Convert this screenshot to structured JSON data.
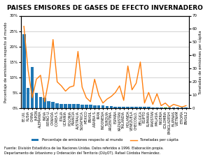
{
  "chart_data": {
    "type": "bar",
    "title": "PAISES EMISORES DE GASES DE EFECTO INVERNADERO",
    "ylabel": "Porcentaje de emisiones respecto al mundo",
    "y2label": "Toneladas de emisiones per cápita",
    "annotation": "Fuente: División Estadística de las Naciones Unidas. Datos referidos a 1996. Elaboración propia.\nDepartamento de Urbanismo y Ordenación del Territorio (DUyOT). Rafael Córdoba Hernández.",
    "categories": [
      "EE.UU.",
      "RUSIA",
      "CHINA",
      "JAPÓN",
      "ALEMANIA",
      "INDIA",
      "REINO U.",
      "CANADÁ",
      "COREA S.",
      "ITALIA",
      "UCRANIA",
      "POLONIA",
      "FRANCIA",
      "AUSTRALIA",
      "SUDÁFRICA",
      "MÉXICO",
      "BRASIL",
      "ARABIA S.",
      "IRÁN",
      "INDONESIA",
      "TURQUÍA",
      "ARGENTINA",
      "ESPAÑA",
      "KAZAJISTÁN",
      "TAILANDIA",
      "HOLANDA",
      "VENEZUELA",
      "CHECOSLO.",
      "BÉLGICA",
      "EGIPTO",
      "RUMANIA",
      "PAKISTAN",
      "MALASIA",
      "NIGERIA",
      "COLOMBIA",
      "BANGLADESH",
      "FILIPINAS",
      "VIETNAM",
      "ETIOPÍA",
      "BRASIL2"
    ],
    "series": [
      {
        "name": "Porcentaje de emisiones respecto al mundo",
        "type": "bar",
        "axis": "y",
        "colors": [
          "#1f77b4",
          "#1f77b4",
          "#1f77b4",
          "#1f77b4",
          "#1f77b4",
          "#1f77b4",
          "#1f77b4",
          "#1f77b4",
          "#1f77b4",
          "#1f77b4",
          "#1f77b4",
          "#1f77b4",
          "#1f77b4",
          "#1f77b4",
          "#1f77b4",
          "#1f77b4",
          "#1f77b4",
          "#1f77b4",
          "#1f77b4",
          "#1f77b4",
          "#1f77b4",
          "#1f77b4",
          "#1f77b4",
          "#1f77b4",
          "#1f77b4",
          "#1f77b4",
          "#1f77b4",
          "#1f77b4",
          "#1f77b4",
          "#1f77b4",
          "#1f77b4",
          "#1f77b4",
          "#1f77b4",
          "#1f77b4",
          "#2ca02c",
          "#1f77b4",
          "#1f77b4",
          "#1f77b4",
          "#1f77b4",
          "#1f77b4"
        ],
        "values": [
          24.0,
          6.5,
          13.5,
          5.0,
          3.6,
          3.5,
          2.4,
          2.1,
          1.7,
          1.5,
          1.4,
          1.3,
          1.5,
          1.3,
          1.1,
          1.2,
          1.1,
          0.9,
          0.9,
          0.9,
          0.7,
          0.7,
          0.6,
          0.5,
          0.5,
          0.5,
          0.5,
          0.4,
          0.4,
          0.4,
          0.4,
          0.3,
          0.3,
          0.3,
          0.3,
          0.3,
          0.2,
          0.2,
          0.2,
          0.2
        ]
      },
      {
        "name": "Toneladas per cápita",
        "type": "line",
        "axis": "y2",
        "color": "#ff7f0e",
        "values": [
          62,
          29,
          8,
          22,
          25,
          5,
          22,
          52,
          20,
          17,
          13,
          16,
          17,
          43,
          16,
          8,
          5,
          22,
          10,
          4,
          7,
          9,
          12,
          17,
          6,
          32,
          14,
          19,
          35,
          4,
          12,
          3,
          11,
          2,
          4,
          1,
          3,
          2,
          1,
          2
        ]
      }
    ],
    "ylim": [
      0,
      30
    ],
    "yticks": [
      {
        "value": 0,
        "label": "0%"
      },
      {
        "value": 5,
        "label": "5%"
      },
      {
        "value": 10,
        "label": "10%"
      },
      {
        "value": 15,
        "label": "15%"
      },
      {
        "value": 20,
        "label": "20%"
      },
      {
        "value": 25,
        "label": "25%"
      },
      {
        "value": 30,
        "label": "30%"
      }
    ],
    "y2lim": [
      0,
      70
    ],
    "y2ticks": [
      0,
      10,
      20,
      30,
      40,
      50,
      60,
      70
    ],
    "grid": true,
    "legend": "lower center"
  }
}
